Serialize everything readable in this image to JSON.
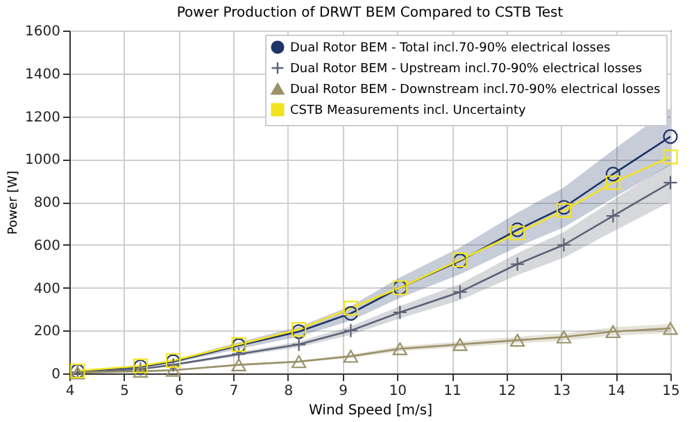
{
  "chart_data": {
    "type": "line",
    "title": "Power Production of DRWT BEM Compared to CSTB Test",
    "xlabel": "Wind Speed [m/s]",
    "ylabel": "Power [W]",
    "x": [
      4.15,
      5.3,
      5.9,
      7.1,
      8.2,
      9.15,
      10.05,
      11.15,
      12.2,
      13.05,
      13.95,
      15
    ],
    "xlim": [
      4,
      15
    ],
    "xticks": [
      4,
      5,
      6,
      7,
      8,
      9,
      10,
      11,
      12,
      13,
      14,
      15
    ],
    "ylim": [
      0,
      1600
    ],
    "yticks": [
      0,
      200,
      400,
      600,
      800,
      1000,
      1200,
      1400,
      1600
    ],
    "grid": true,
    "legend": "top right",
    "line_style": "solid",
    "series": [
      {
        "name": "Dual Rotor BEM - Total incl.70-90% electrical losses",
        "color": "#1f3466",
        "marker": "circle",
        "values": [
          10,
          30,
          55,
          130,
          195,
          280,
          400,
          525,
          670,
          775,
          930,
          1105
        ],
        "lower": [
          9,
          26,
          48,
          114,
          172,
          246,
          352,
          462,
          590,
          682,
          818,
          972
        ],
        "upper": [
          11,
          34,
          62,
          146,
          218,
          314,
          448,
          588,
          750,
          868,
          1042,
          1238
        ]
      },
      {
        "name": "Dual Rotor BEM - Upstream incl.70-90% electrical losses",
        "color": "#5c6275",
        "marker": "cross",
        "values": [
          5,
          20,
          40,
          90,
          135,
          200,
          285,
          380,
          510,
          600,
          735,
          890
        ],
        "lower": [
          4.5,
          18,
          36,
          81,
          122,
          180,
          257,
          342,
          459,
          540,
          662,
          801
        ],
        "upper": [
          5.5,
          22,
          44,
          99,
          149,
          220,
          314,
          418,
          561,
          660,
          809,
          979
        ]
      },
      {
        "name": "Dual Rotor BEM - Downstream incl.70-90% electrical losses",
        "color": "#9a9168",
        "marker": "triangle",
        "values": [
          3,
          10,
          15,
          40,
          55,
          80,
          115,
          135,
          155,
          170,
          195,
          210
        ],
        "lower": [
          2.7,
          9,
          13.5,
          36,
          50,
          72,
          104,
          122,
          140,
          153,
          176,
          189
        ],
        "upper": [
          3.3,
          11,
          16.5,
          44,
          61,
          88,
          127,
          149,
          171,
          187,
          215,
          231
        ]
      },
      {
        "name": "CSTB Measurements incl. Uncertainty",
        "color": "#f2e41e",
        "marker": "square",
        "values": [
          12,
          35,
          60,
          135,
          205,
          305,
          400,
          530,
          655,
          760,
          890,
          1010
        ]
      }
    ]
  }
}
